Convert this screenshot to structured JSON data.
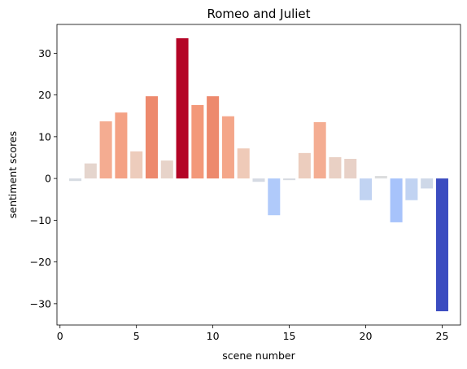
{
  "chart_data": {
    "type": "bar",
    "title": "Romeo and Juliet",
    "xlabel": "scene number",
    "ylabel": "sentiment scores",
    "x": [
      1,
      2,
      3,
      4,
      5,
      6,
      7,
      8,
      9,
      10,
      11,
      12,
      13,
      14,
      15,
      16,
      17,
      18,
      19,
      20,
      21,
      22,
      23,
      24,
      25
    ],
    "values": [
      -0.6,
      3.6,
      13.7,
      15.8,
      6.5,
      19.7,
      4.3,
      33.6,
      17.6,
      19.7,
      14.9,
      7.2,
      -0.8,
      -8.8,
      -0.4,
      6.1,
      13.5,
      5.1,
      4.7,
      -5.2,
      0.6,
      -10.5,
      -5.2,
      -2.4,
      -31.8
    ],
    "xlim": [
      -0.2,
      26.2
    ],
    "ylim": [
      -35.1,
      36.9
    ],
    "xticks": [
      0,
      5,
      10,
      15,
      20,
      25
    ],
    "yticks": [
      -30,
      -20,
      -10,
      0,
      10,
      20,
      30
    ],
    "colormap": "coolwarm",
    "grid": false
  }
}
